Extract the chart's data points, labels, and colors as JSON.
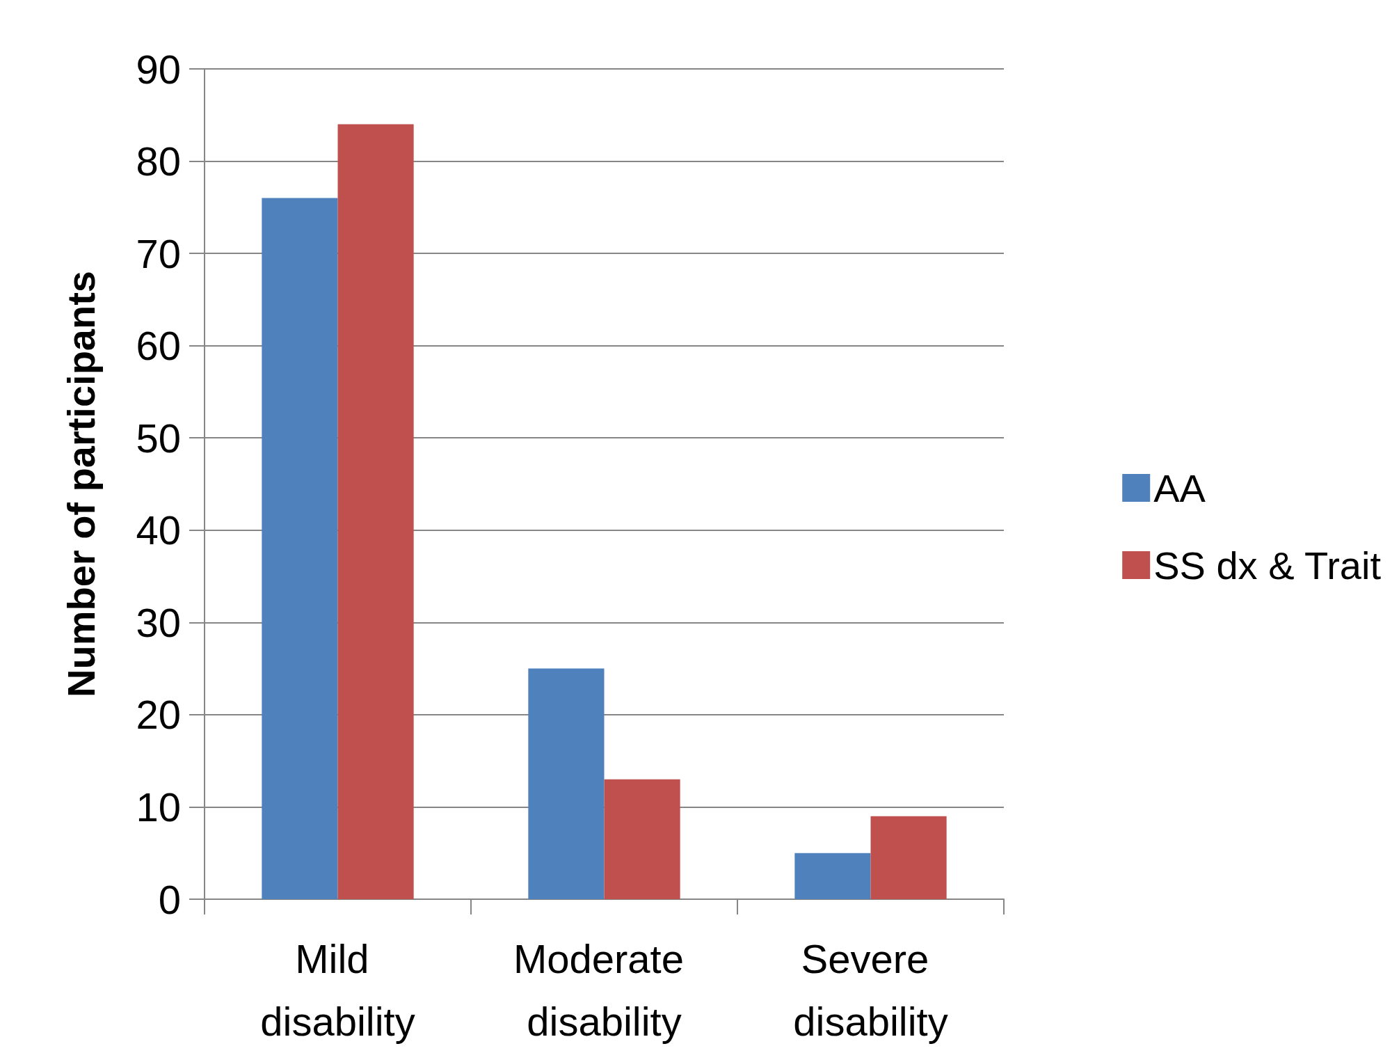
{
  "chart_data": {
    "type": "bar",
    "ylabel": "Number of participants",
    "categories": [
      "Mild disability",
      "Moderate disability",
      "Severe disability"
    ],
    "series": [
      {
        "name": "AA",
        "color": "#4f81bd",
        "values": [
          76,
          25,
          5
        ]
      },
      {
        "name": "SS dx & Trait",
        "color": "#c0504d",
        "values": [
          84,
          13,
          9
        ]
      }
    ],
    "ylim": [
      0,
      90
    ],
    "yticks": [
      0,
      10,
      20,
      30,
      40,
      50,
      60,
      70,
      80,
      90
    ],
    "grid": "y",
    "legend": "right"
  }
}
